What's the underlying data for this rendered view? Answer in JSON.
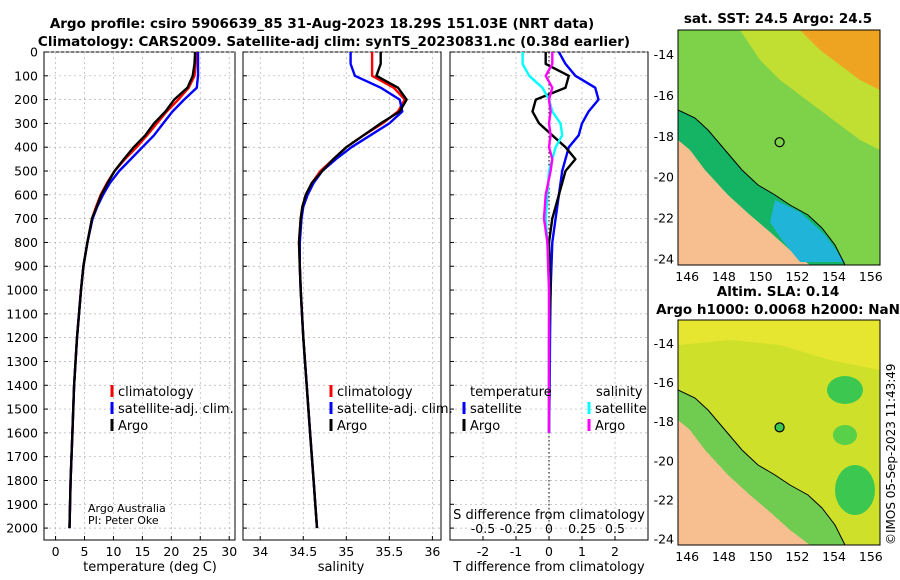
{
  "header": {
    "title_line1": "Argo profile: csiro 5906639_85 31-Aug-2023 18.29S 151.03E (NRT data)",
    "title_line2": "Climatology: CARS2009. Satellite-adj clim: synTS_20230831.nc (0.38d earlier)"
  },
  "colors": {
    "climatology": "#ff0000",
    "satellite": "#0000ff",
    "argo": "#000000",
    "sat_salinity": "#00ffff",
    "argo_salinity": "#ff00ff",
    "land": "#f7bf8f"
  },
  "chart_data": [
    {
      "id": "temperature",
      "type": "line",
      "xlabel": "temperature (deg C)",
      "xlim": [
        -2,
        31
      ],
      "xticks": [
        0,
        5,
        10,
        15,
        20,
        25,
        30
      ],
      "ylim": [
        0,
        2050
      ],
      "yticks": [
        0,
        100,
        200,
        300,
        400,
        500,
        600,
        700,
        800,
        900,
        1000,
        1100,
        1200,
        1300,
        1400,
        1500,
        1600,
        1700,
        1800,
        1900,
        2000
      ],
      "series": [
        {
          "name": "climatology",
          "color": "red",
          "depth": [
            0,
            50,
            100,
            150,
            200,
            250,
            300,
            350,
            400,
            450,
            500,
            550,
            600,
            650,
            700,
            800,
            900,
            1000,
            1200,
            1400,
            1600,
            1800,
            2000
          ],
          "values": [
            24.3,
            24.2,
            24.0,
            23.0,
            21.2,
            19.2,
            17.5,
            15.8,
            14.0,
            12.0,
            10.2,
            8.9,
            7.8,
            7.0,
            6.3,
            5.5,
            4.8,
            4.4,
            3.7,
            3.2,
            2.9,
            2.6,
            2.4
          ]
        },
        {
          "name": "satellite-adj. clim.",
          "color": "blue",
          "depth": [
            0,
            50,
            100,
            150,
            200,
            250,
            300,
            350,
            400,
            450,
            500,
            550,
            600,
            650,
            700,
            800,
            900,
            1000,
            1200,
            1400,
            1600,
            1800,
            2000
          ],
          "values": [
            24.6,
            24.6,
            24.6,
            24.4,
            22.2,
            20.2,
            18.6,
            17.0,
            15.0,
            13.0,
            11.0,
            9.4,
            8.2,
            7.2,
            6.4,
            5.5,
            4.8,
            4.4,
            3.7,
            3.2,
            2.9,
            2.6,
            2.4
          ]
        },
        {
          "name": "Argo",
          "color": "black",
          "depth": [
            0,
            50,
            100,
            150,
            200,
            250,
            300,
            350,
            400,
            450,
            500,
            550,
            600,
            650,
            700,
            800,
            900,
            1000,
            1200,
            1400,
            1600,
            1800,
            2000
          ],
          "values": [
            24.1,
            24.0,
            23.7,
            22.8,
            20.5,
            19.0,
            17.0,
            15.5,
            13.5,
            11.8,
            10.2,
            9.0,
            7.9,
            7.1,
            6.3,
            5.5,
            4.8,
            4.4,
            3.7,
            3.2,
            2.9,
            2.6,
            2.4
          ]
        }
      ],
      "legend": [
        "climatology",
        "satellite-adj. clim.",
        "Argo"
      ],
      "credit_line1": "Argo Australia",
      "credit_line2": "PI: Peter Oke"
    },
    {
      "id": "salinity",
      "type": "line",
      "xlabel": "salinity",
      "xlim": [
        33.8,
        36.1
      ],
      "xticks": [
        34,
        34.5,
        35,
        35.5,
        36
      ],
      "ylim": [
        0,
        2050
      ],
      "series": [
        {
          "name": "climatology",
          "color": "red",
          "depth": [
            0,
            50,
            100,
            150,
            200,
            250,
            300,
            350,
            400,
            450,
            500,
            550,
            600,
            650,
            700,
            800,
            900,
            1000,
            1200,
            1400,
            1600,
            1800,
            2000
          ],
          "values": [
            35.3,
            35.3,
            35.3,
            35.55,
            35.68,
            35.6,
            35.42,
            35.2,
            35.0,
            34.85,
            34.7,
            34.6,
            34.53,
            34.49,
            34.47,
            34.45,
            34.46,
            34.47,
            34.5,
            34.54,
            34.58,
            34.62,
            34.66
          ]
        },
        {
          "name": "satellite-adj. clim.",
          "color": "blue",
          "depth": [
            0,
            50,
            100,
            150,
            200,
            250,
            300,
            350,
            400,
            450,
            500,
            550,
            600,
            650,
            700,
            800,
            900,
            1000,
            1200,
            1400,
            1600,
            1800,
            2000
          ],
          "values": [
            35.05,
            35.05,
            35.1,
            35.4,
            35.62,
            35.65,
            35.5,
            35.28,
            35.06,
            34.88,
            34.72,
            34.62,
            34.55,
            34.5,
            34.48,
            34.46,
            34.46,
            34.47,
            34.5,
            34.54,
            34.58,
            34.62,
            34.66
          ]
        },
        {
          "name": "Argo",
          "color": "black",
          "depth": [
            0,
            50,
            100,
            150,
            200,
            250,
            300,
            350,
            400,
            450,
            500,
            550,
            600,
            650,
            700,
            800,
            900,
            1000,
            1200,
            1400,
            1600,
            1800,
            2000
          ],
          "values": [
            35.4,
            35.4,
            35.35,
            35.6,
            35.7,
            35.62,
            35.4,
            35.2,
            35.0,
            34.85,
            34.72,
            34.6,
            34.53,
            34.49,
            34.47,
            34.45,
            34.46,
            34.47,
            34.5,
            34.54,
            34.58,
            34.62,
            34.66
          ]
        }
      ],
      "legend": [
        "climatology",
        "satellite-adj. clim.",
        "Argo"
      ]
    },
    {
      "id": "difference",
      "type": "line",
      "xlabel": "T difference from climatology",
      "xlabel_top": "S difference from climatology",
      "xlim": [
        -3,
        3
      ],
      "xticks": [
        -2,
        -1,
        0,
        1,
        2
      ],
      "xticks_top": [
        "-0.5",
        "-0.25",
        "0",
        "0.25",
        "0.5"
      ],
      "ylim": [
        0,
        2050
      ],
      "series": [
        {
          "name": "temperature satellite",
          "color": "blue",
          "depth": [
            0,
            50,
            100,
            150,
            200,
            250,
            300,
            350,
            400,
            450,
            500,
            600,
            700,
            800,
            1000,
            1200,
            1400,
            1600
          ],
          "values": [
            0.3,
            0.5,
            0.8,
            1.4,
            1.5,
            1.2,
            1.0,
            0.9,
            0.6,
            0.5,
            0.4,
            0.3,
            0.2,
            0.1,
            0.05,
            0.03,
            0.02,
            0.0
          ]
        },
        {
          "name": "temperature Argo",
          "color": "black",
          "depth": [
            0,
            50,
            100,
            150,
            200,
            250,
            300,
            350,
            400,
            450,
            500,
            600,
            700,
            800,
            1000,
            1200,
            1400,
            1600
          ],
          "values": [
            -0.1,
            -0.1,
            0.6,
            0.5,
            -0.4,
            -0.5,
            -0.3,
            0.1,
            0.5,
            0.8,
            0.5,
            0.3,
            0.1,
            0.0,
            0.05,
            0.0,
            0.0,
            0.0
          ]
        },
        {
          "name": "salinity satellite",
          "color": "cyan",
          "depth": [
            0,
            50,
            100,
            150,
            200,
            250,
            300,
            350,
            400,
            450,
            500,
            600,
            700,
            800,
            1000,
            1200,
            1400,
            1600
          ],
          "values": [
            -0.8,
            -0.8,
            -0.6,
            -0.2,
            0.0,
            0.1,
            0.35,
            0.4,
            0.2,
            0.1,
            0.0,
            -0.05,
            -0.1,
            -0.05,
            0.0,
            0.0,
            0.0,
            0.0
          ]
        },
        {
          "name": "salinity Argo",
          "color": "magenta",
          "depth": [
            0,
            50,
            100,
            150,
            200,
            250,
            300,
            350,
            400,
            450,
            500,
            600,
            700,
            800,
            1000,
            1200,
            1400,
            1600
          ],
          "values": [
            0.1,
            0.1,
            -0.1,
            0.1,
            0.0,
            0.05,
            0.0,
            0.05,
            0.0,
            0.1,
            0.05,
            -0.1,
            -0.15,
            -0.05,
            0.0,
            0.0,
            0.0,
            0.0
          ]
        }
      ],
      "legend_left_title": "temperature",
      "legend_right_title": "salinity",
      "legend_left": [
        "satellite",
        "Argo"
      ],
      "legend_right": [
        "satellite",
        "Argo"
      ]
    },
    {
      "id": "sst_map",
      "type": "heatmap",
      "title": "sat. SST: 24.5 Argo: 24.5",
      "xticks": [
        146,
        148,
        150,
        152,
        154,
        156
      ],
      "yticks": [
        -14,
        -16,
        -18,
        -20,
        -22,
        -24
      ],
      "xlim": [
        145.5,
        156.5
      ],
      "ylim": [
        -24.3,
        -12.8
      ],
      "argo_position": [
        151.03,
        -18.29
      ]
    },
    {
      "id": "sla_map",
      "type": "heatmap",
      "title_line1": "Altim. SLA: 0.14",
      "title_line2": "Argo h1000: 0.0068 h2000: NaN",
      "xticks": [
        146,
        148,
        150,
        152,
        154,
        156
      ],
      "yticks": [
        -14,
        -16,
        -18,
        -20,
        -22,
        -24
      ],
      "xlim": [
        145.5,
        156.5
      ],
      "ylim": [
        -24.3,
        -12.8
      ],
      "argo_position": [
        151.03,
        -18.29
      ]
    }
  ],
  "footer": {
    "copyright": "©IMOS 05-Sep-2023 11:43:49"
  }
}
